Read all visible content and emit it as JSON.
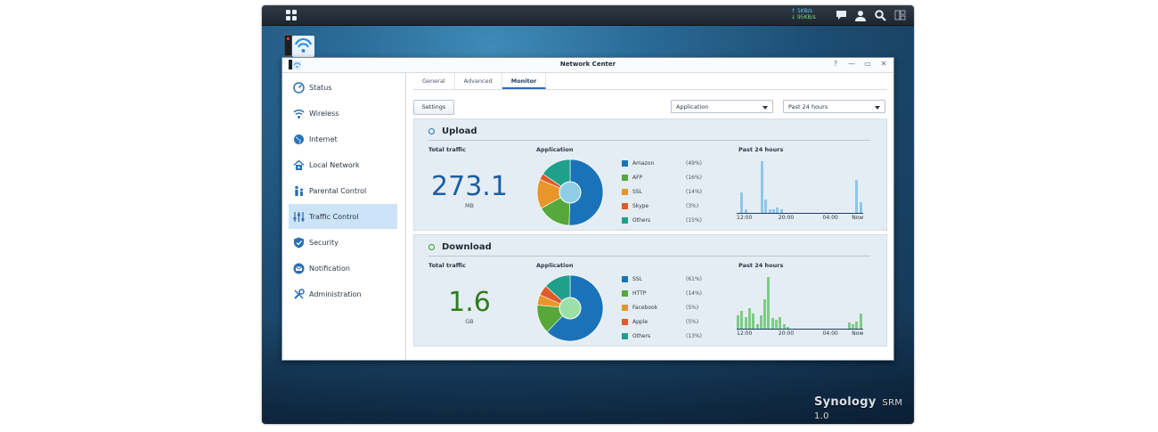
{
  "desktop": {
    "taskbar": {
      "upload_speed": "1KB/s",
      "download_speed": "95KB/s",
      "icons": [
        "speech-bubble-icon",
        "user-icon",
        "search-icon",
        "widgets-icon"
      ]
    },
    "brand": "Synology",
    "brand_product": "SRM 1.0"
  },
  "window": {
    "title": "Network Center",
    "controls": [
      "?",
      "—",
      "▭",
      "✕"
    ]
  },
  "sidebar": {
    "items": [
      {
        "label": "Status",
        "icon": "gauge-icon"
      },
      {
        "label": "Wireless",
        "icon": "wifi-icon"
      },
      {
        "label": "Internet",
        "icon": "globe-icon"
      },
      {
        "label": "Local Network",
        "icon": "house-icon"
      },
      {
        "label": "Parental Control",
        "icon": "family-icon"
      },
      {
        "label": "Traffic Control",
        "icon": "sliders-icon",
        "active": true
      },
      {
        "label": "Security",
        "icon": "shield-icon"
      },
      {
        "label": "Notification",
        "icon": "envelope-icon"
      },
      {
        "label": "Administration",
        "icon": "tools-icon"
      }
    ]
  },
  "tabs": [
    {
      "label": "General"
    },
    {
      "label": "Advanced"
    },
    {
      "label": "Monitor",
      "active": true
    }
  ],
  "toolbar": {
    "settings_label": "Settings",
    "view_select": "Application",
    "range_select": "Past 24 hours"
  },
  "upload": {
    "title": "Upload",
    "total_label": "Total traffic",
    "total_value": "273.1",
    "total_unit": "MB",
    "app_label": "Application",
    "chart_label": "Past 24 hours",
    "accent": "#1a5ea3"
  },
  "download": {
    "title": "Download",
    "total_label": "Total traffic",
    "total_value": "1.6",
    "total_unit": "GB",
    "app_label": "Application",
    "chart_label": "Past 24 hours",
    "accent": "#2f7d1e"
  },
  "chart_data": [
    {
      "type": "pie",
      "panel": "upload",
      "slices": [
        {
          "name": "Amazon",
          "pct_label": "(49%)",
          "value": 49,
          "color": "#1a73b8"
        },
        {
          "name": "AFP",
          "pct_label": "(16%)",
          "value": 16,
          "color": "#56a83a"
        },
        {
          "name": "SSL",
          "pct_label": "(14%)",
          "value": 14,
          "color": "#e8962a"
        },
        {
          "name": "Skype",
          "pct_label": "(3%)",
          "value": 3,
          "color": "#e05a2a"
        },
        {
          "name": "Others",
          "pct_label": "(15%)",
          "value": 15,
          "color": "#1fa08a"
        }
      ]
    },
    {
      "type": "bar",
      "panel": "upload",
      "title": "Past 24 hours",
      "x_ticks": [
        "12:00",
        "20:00",
        "04:00",
        "Now"
      ],
      "values": [
        0,
        12,
        2,
        0,
        0,
        0,
        30,
        8,
        2,
        2,
        3,
        2,
        0,
        0,
        0,
        0,
        0,
        0,
        0,
        0,
        0,
        0,
        0,
        0,
        0,
        0,
        0,
        0,
        0,
        0,
        19,
        6
      ],
      "color": "#8ec7ea"
    },
    {
      "type": "pie",
      "panel": "download",
      "slices": [
        {
          "name": "SSL",
          "pct_label": "(61%)",
          "value": 61,
          "color": "#1a73b8"
        },
        {
          "name": "HTTP",
          "pct_label": "(14%)",
          "value": 14,
          "color": "#56a83a"
        },
        {
          "name": "Facebook",
          "pct_label": "(5%)",
          "value": 5,
          "color": "#e8962a"
        },
        {
          "name": "Apple",
          "pct_label": "(5%)",
          "value": 5,
          "color": "#e05a2a"
        },
        {
          "name": "Others",
          "pct_label": "(13%)",
          "value": 13,
          "color": "#1fa08a"
        }
      ]
    },
    {
      "type": "bar",
      "panel": "download",
      "title": "Past 24 hours",
      "x_ticks": [
        "12:00",
        "20:00",
        "04:00",
        "Now"
      ],
      "values": [
        9,
        12,
        8,
        14,
        10,
        3,
        9,
        20,
        35,
        7,
        6,
        8,
        3,
        1,
        0,
        0,
        0,
        0,
        0,
        0,
        0,
        0,
        0,
        0,
        0,
        0,
        0,
        0,
        0,
        4,
        3,
        5,
        10
      ],
      "color": "#7dcc84"
    }
  ]
}
